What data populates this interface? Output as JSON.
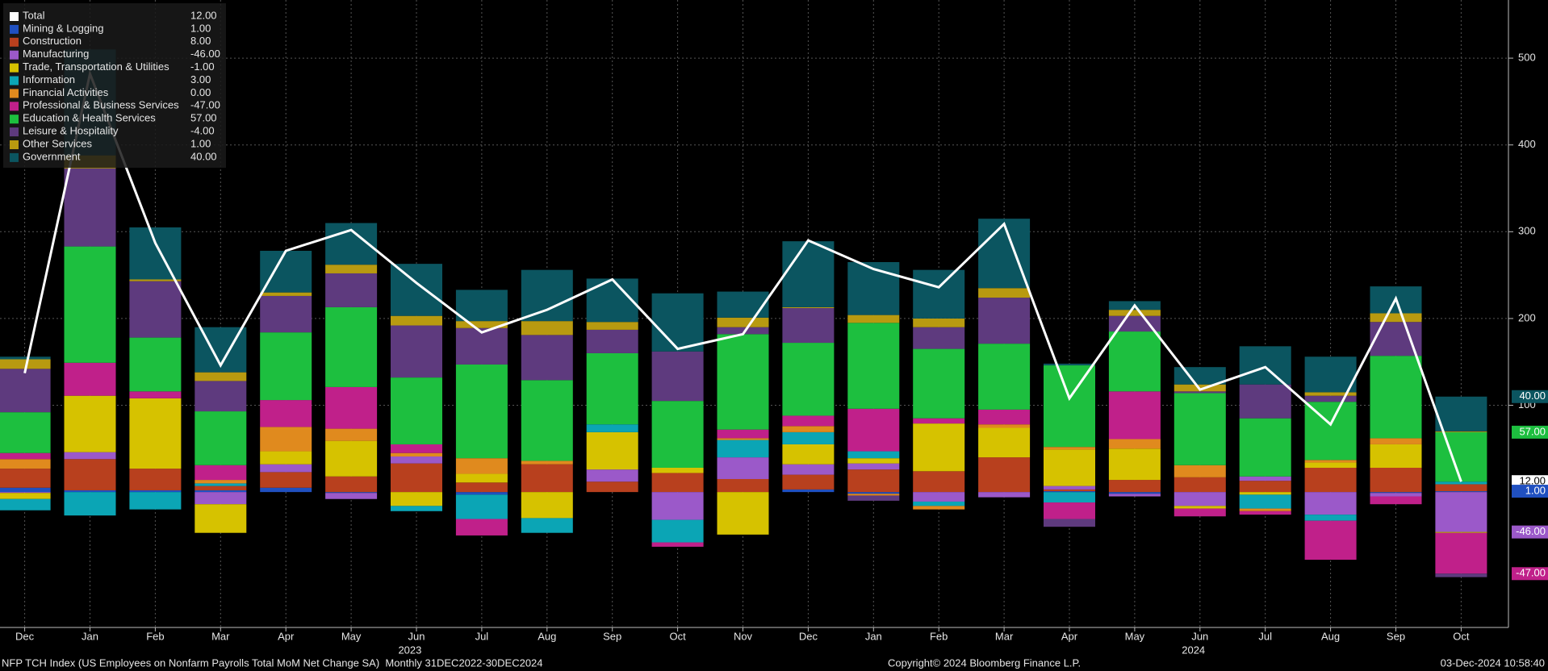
{
  "chart_data": {
    "type": "bar",
    "stacked": true,
    "categories": [
      "Dec",
      "Jan",
      "Feb",
      "Mar",
      "Apr",
      "May",
      "Jun",
      "Jul",
      "Aug",
      "Sep",
      "Oct",
      "Nov",
      "Dec",
      "Jan",
      "Feb",
      "Mar",
      "Apr",
      "May",
      "Jun",
      "Jul",
      "Aug",
      "Sep",
      "Oct"
    ],
    "years": [
      "2023",
      "2024"
    ],
    "ylim": [
      -156,
      567
    ],
    "yticks": [
      100,
      200,
      300,
      400,
      500
    ],
    "grid": true,
    "legend": "upper left",
    "series": [
      {
        "name": "Total",
        "type": "line",
        "color": "#ffffff",
        "legend_value": "12.00",
        "axis_tag": true,
        "values": [
          137,
          482,
          287,
          146,
          278,
          302,
          241,
          184,
          210,
          245,
          165,
          182,
          290,
          257,
          236,
          309,
          108,
          215,
          118,
          144,
          78,
          223,
          12
        ]
      },
      {
        "name": "Mining & Logging",
        "color": "#2050c0",
        "legend_value": "1.00",
        "axis_tag": true,
        "values": [
          5,
          2,
          2,
          2,
          5,
          -1,
          0,
          -3,
          0,
          0,
          0,
          0,
          3,
          -2,
          0,
          0,
          1,
          -2,
          0,
          0,
          0,
          -1,
          1
        ]
      },
      {
        "name": "Construction",
        "color": "#b8401e",
        "legend_value": "8.00",
        "values": [
          22,
          36,
          25,
          5,
          18,
          18,
          33,
          11,
          32,
          12,
          22,
          15,
          17,
          26,
          24,
          40,
          2,
          14,
          17,
          13,
          28,
          28,
          8
        ]
      },
      {
        "name": "Manufacturing",
        "color": "#9b59c9",
        "legend_value": "-46.00",
        "axis_tag": true,
        "values": [
          -1,
          8,
          0,
          -14,
          9,
          -7,
          8,
          0,
          0,
          14,
          -32,
          25,
          12,
          7,
          -11,
          -6,
          4,
          -3,
          -16,
          5,
          -26,
          -4,
          -46
        ]
      },
      {
        "name": "Trade, Transportation & Utilities",
        "color": "#d6c200",
        "legend_value": "-1.00",
        "values": [
          -7,
          65,
          81,
          -33,
          15,
          41,
          -16,
          10,
          -30,
          43,
          6,
          -49,
          23,
          6,
          55,
          34,
          42,
          36,
          -3,
          -3,
          6,
          27,
          -1
        ]
      },
      {
        "name": "Information",
        "color": "#0ba5b5",
        "legend_value": "3.00",
        "values": [
          -13,
          -27,
          -20,
          3,
          0,
          0,
          -6,
          -28,
          -17,
          9,
          -26,
          20,
          14,
          8,
          -5,
          0,
          -12,
          0,
          0,
          -16,
          -7,
          0,
          3
        ]
      },
      {
        "name": "Financial Activities",
        "color": "#e08a1e",
        "legend_value": "0.00",
        "values": [
          11,
          0,
          0,
          4,
          28,
          14,
          4,
          18,
          4,
          0,
          0,
          2,
          7,
          -2,
          -4,
          4,
          3,
          11,
          14,
          -3,
          3,
          7,
          0
        ]
      },
      {
        "name": "Professional & Business Services",
        "color": "#c0208a",
        "legend_value": "-47.00",
        "axis_tag": true,
        "values": [
          7,
          38,
          8,
          17,
          31,
          48,
          10,
          -19,
          0,
          0,
          -5,
          10,
          12,
          49,
          6,
          17,
          -19,
          55,
          -9,
          -4,
          -45,
          -9,
          -47
        ]
      },
      {
        "name": "Education & Health Services",
        "color": "#1dbf3f",
        "legend_value": "57.00",
        "axis_tag": true,
        "values": [
          47,
          134,
          62,
          62,
          78,
          92,
          77,
          108,
          93,
          82,
          77,
          110,
          84,
          99,
          80,
          76,
          94,
          69,
          83,
          67,
          67,
          95,
          57
        ]
      },
      {
        "name": "Leisure & Hospitality",
        "color": "#5e3a7e",
        "legend_value": "-4.00",
        "values": [
          50,
          90,
          65,
          35,
          42,
          39,
          60,
          42,
          52,
          27,
          57,
          8,
          40,
          -6,
          25,
          53,
          -9,
          18,
          2,
          39,
          7,
          39,
          -4
        ]
      },
      {
        "name": "Other Services",
        "color": "#b89a10",
        "legend_value": "1.00",
        "values": [
          11,
          15,
          2,
          10,
          4,
          10,
          11,
          8,
          16,
          9,
          0,
          11,
          1,
          9,
          10,
          11,
          0,
          7,
          8,
          0,
          4,
          10,
          1
        ]
      },
      {
        "name": "Government",
        "color": "#0b5560",
        "legend_value": "40.00",
        "axis_tag": true,
        "values": [
          3,
          122,
          60,
          52,
          48,
          48,
          60,
          36,
          59,
          50,
          67,
          30,
          76,
          61,
          56,
          80,
          2,
          10,
          20,
          44,
          41,
          31,
          40
        ]
      }
    ],
    "footer_left": "NFP TCH Index (US Employees on Nonfarm Payrolls Total MoM Net Change SA)  Monthly 31DEC2022-30DEC2024",
    "footer_center": "Copyright© 2024 Bloomberg Finance L.P.",
    "footer_right": "03-Dec-2024 10:58:40"
  }
}
